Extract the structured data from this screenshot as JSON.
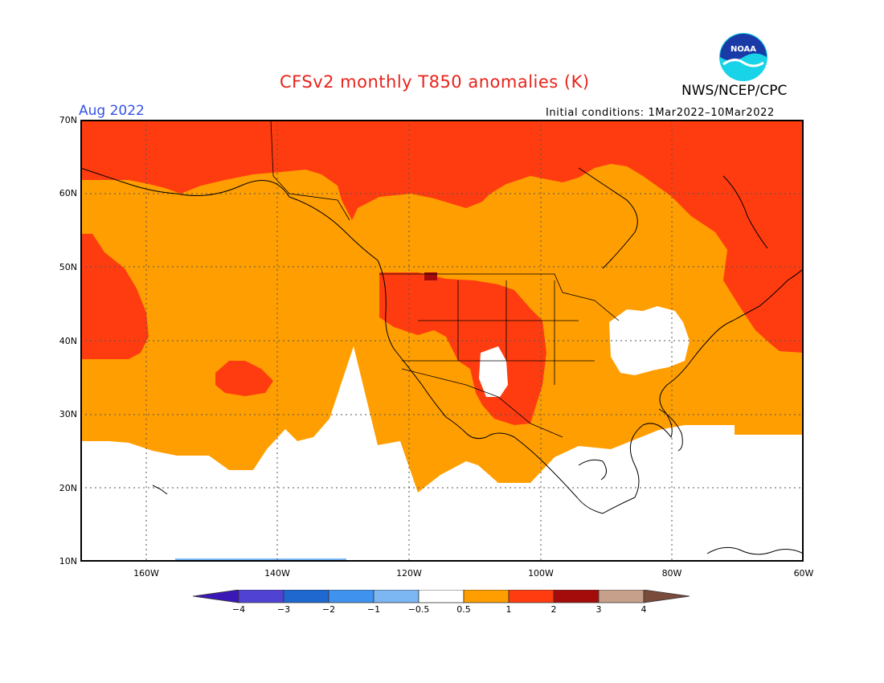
{
  "header": {
    "title": "CFSv2 monthly T850 anomalies (K)",
    "agency": "NWS/NCEP/CPC",
    "valid_month": "Aug 2022",
    "initial_conditions": "Initial conditions: 1Mar2022–10Mar2022",
    "logo_text": "NOAA"
  },
  "axes": {
    "lat_labels": [
      "70N",
      "60N",
      "50N",
      "40N",
      "30N",
      "20N",
      "10N"
    ],
    "lon_labels": [
      "160W",
      "140W",
      "120W",
      "100W",
      "80W",
      "60W"
    ],
    "lat_range": [
      10,
      70
    ],
    "lon_range": [
      -170,
      -60
    ]
  },
  "legend": {
    "ticks": [
      "−4",
      "−3",
      "−2",
      "−1",
      "−0.5",
      "0.5",
      "1",
      "2",
      "3",
      "4"
    ],
    "colors": [
      "#3a18b8",
      "#5042d2",
      "#1f68d0",
      "#3f93ee",
      "#7cb6f3",
      "#ffffff",
      "#ff9e00",
      "#ff3c10",
      "#a40c0c",
      "#c7a08c",
      "#7a4a3a"
    ]
  },
  "map": {
    "colors": {
      "light": "#ff9e00",
      "mid": "#ff3c10",
      "dark": "#a40c0c",
      "blue": "#7cb6f3",
      "none": "#ffffff"
    }
  }
}
